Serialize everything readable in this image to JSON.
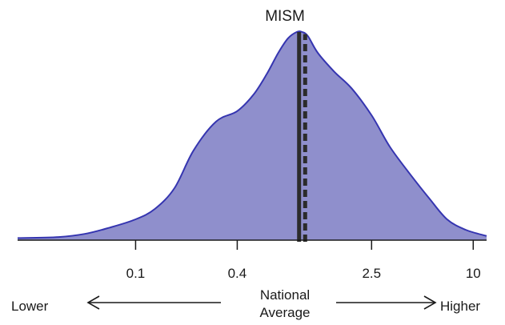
{
  "chart_data": {
    "type": "area",
    "title": "MISM",
    "x_scale": "log",
    "xlim": [
      0.02,
      12
    ],
    "x_ticks": [
      {
        "value": 0.1,
        "label": "0.1"
      },
      {
        "value": 0.4,
        "label": "0.4"
      },
      {
        "value": 2.5,
        "label": "2.5"
      },
      {
        "value": 10,
        "label": "10"
      }
    ],
    "density": {
      "x": [
        0.02,
        0.035,
        0.05,
        0.07,
        0.1,
        0.13,
        0.17,
        0.22,
        0.3,
        0.4,
        0.5,
        0.6,
        0.7,
        0.8,
        0.9,
        0.97,
        1.05,
        1.2,
        1.5,
        1.9,
        2.5,
        3.2,
        4.2,
        5.5,
        7.0,
        9.0,
        12.0
      ],
      "value": [
        0.01,
        0.015,
        0.03,
        0.06,
        0.1,
        0.15,
        0.25,
        0.43,
        0.57,
        0.62,
        0.7,
        0.8,
        0.9,
        0.97,
        1.0,
        1.0,
        0.98,
        0.9,
        0.81,
        0.73,
        0.6,
        0.45,
        0.32,
        0.2,
        0.1,
        0.05,
        0.02
      ]
    },
    "reference_lines": [
      {
        "x": 0.93,
        "style": "solid"
      },
      {
        "x": 1.01,
        "style": "dashed"
      }
    ],
    "annotations": {
      "lower": "Lower",
      "national_line1": "National",
      "national_line2": "Average",
      "higher": "Higher"
    },
    "colors": {
      "fill": "#8f8fcc",
      "outline": "#3535b0",
      "reference": "#2b2b2b",
      "axis": "#1a1a1a"
    }
  }
}
